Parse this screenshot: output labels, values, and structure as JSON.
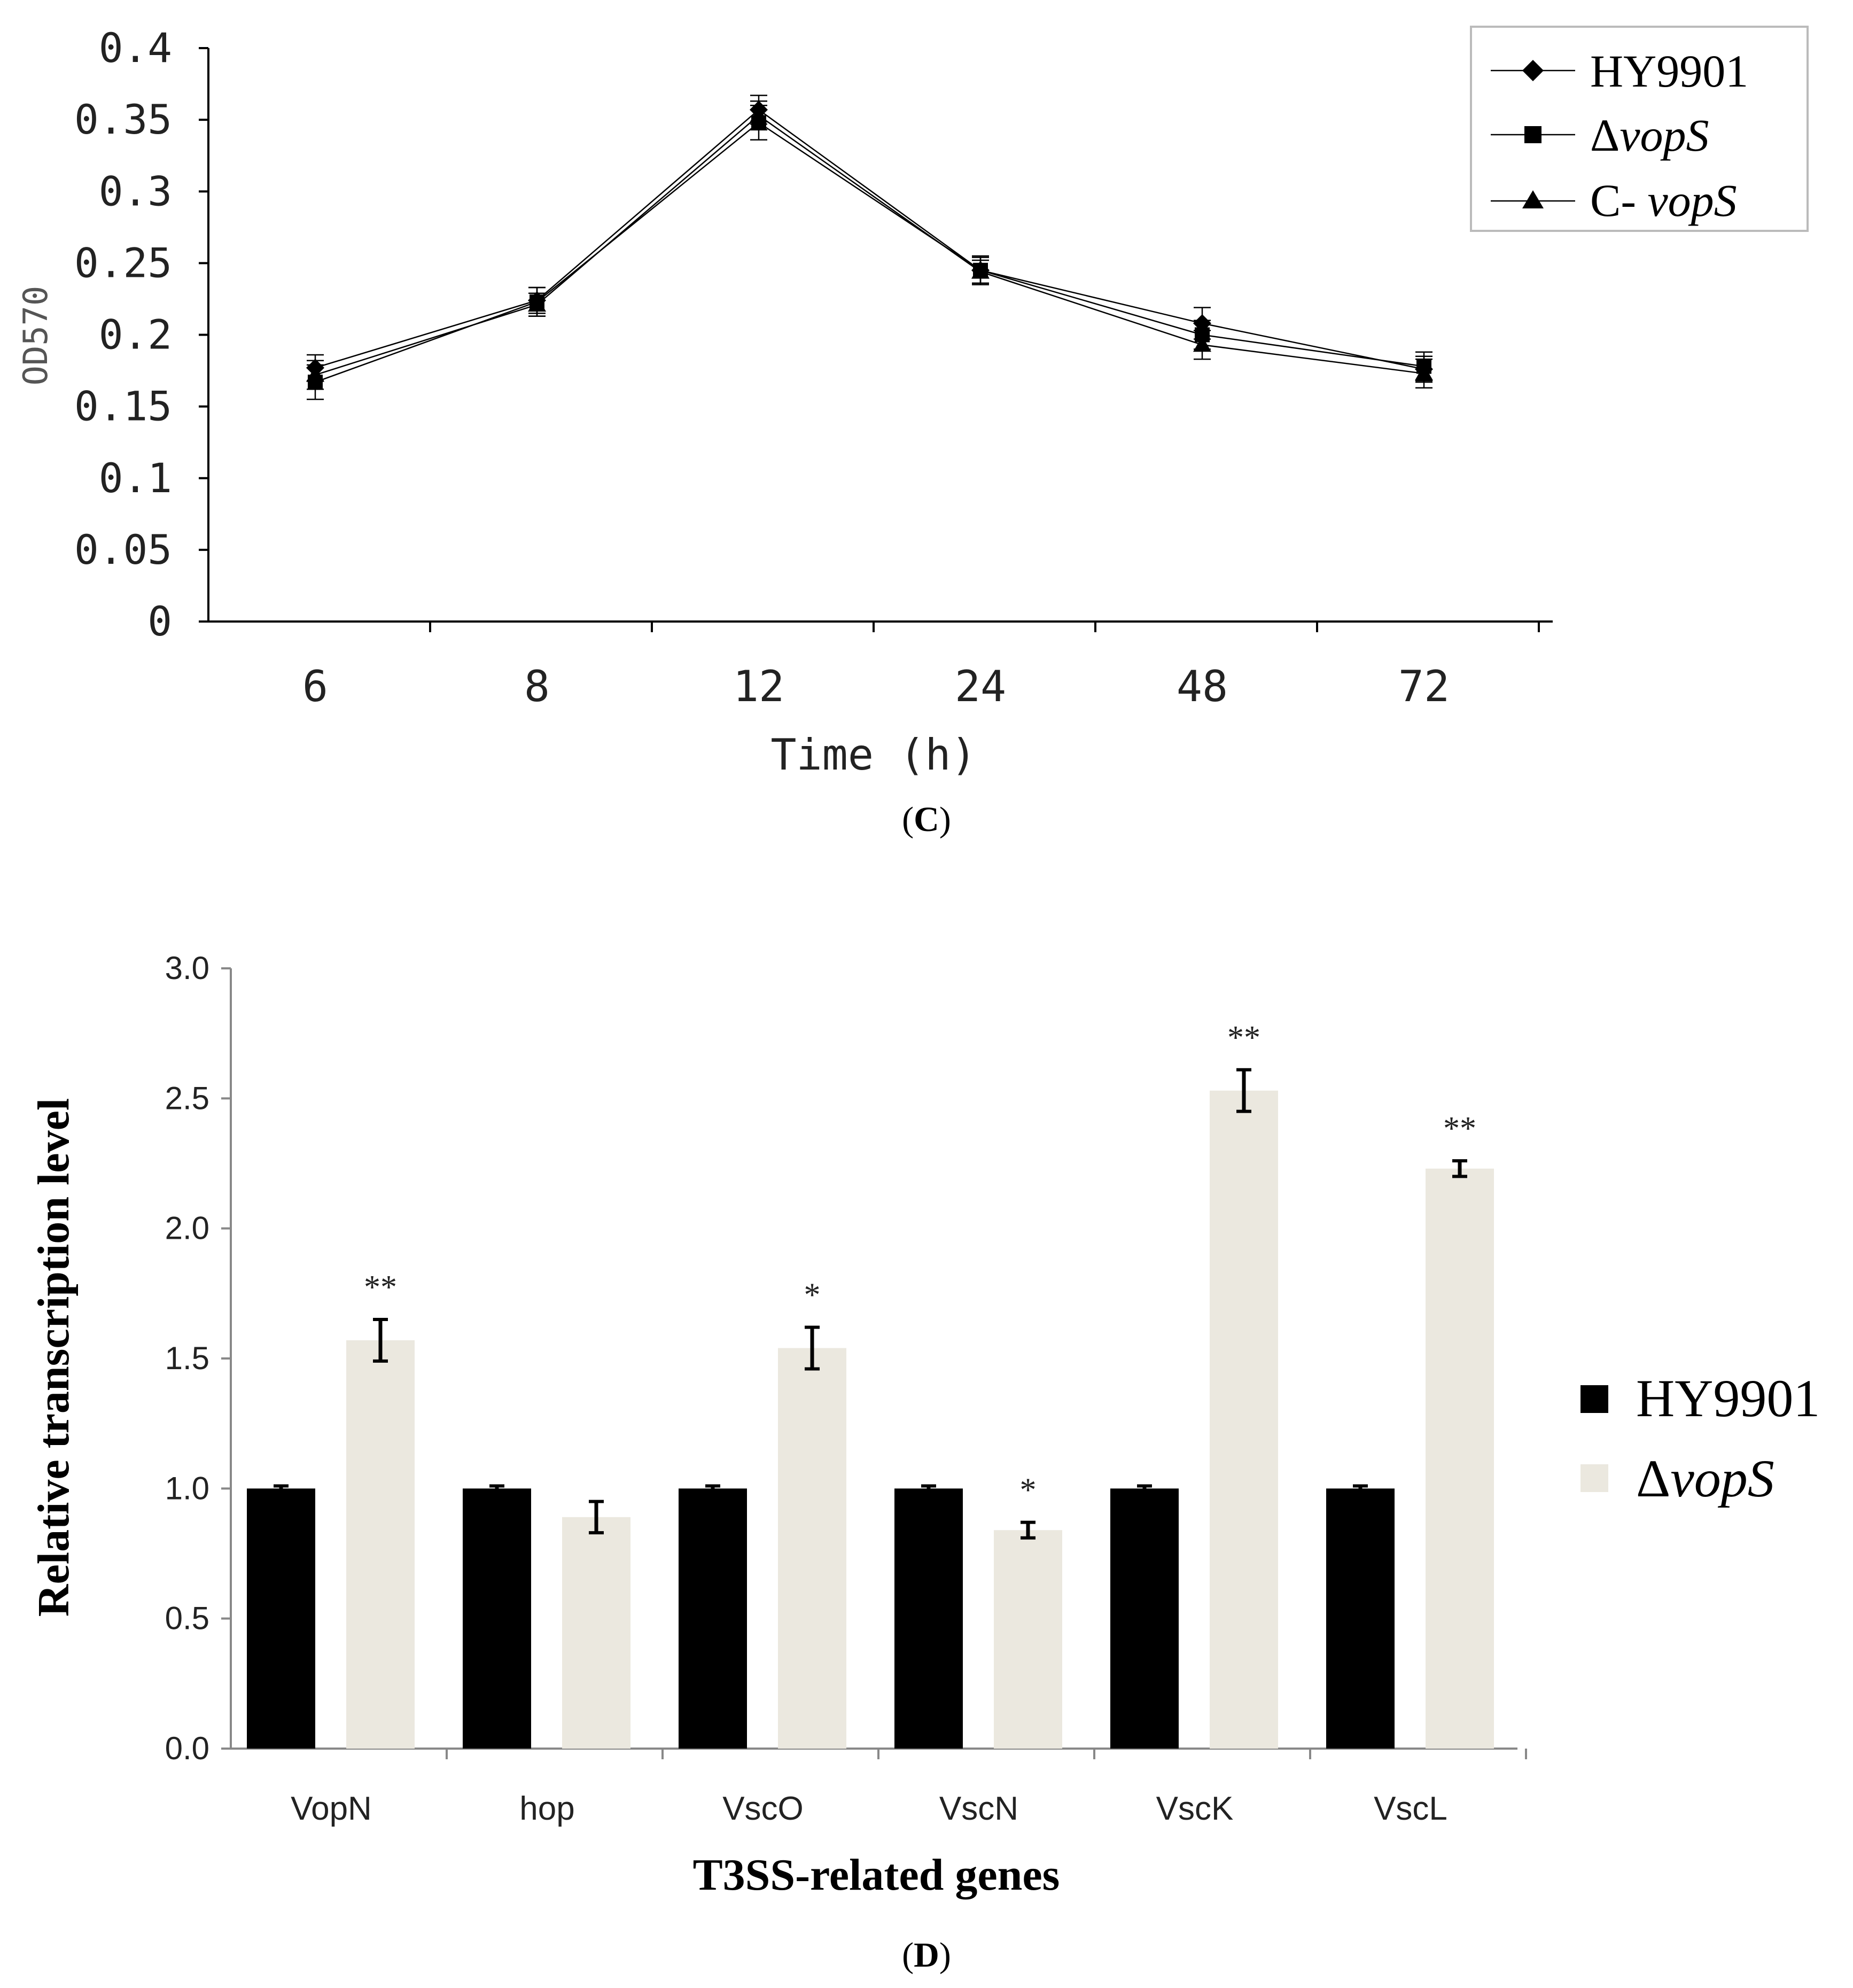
{
  "chart_data": [
    {
      "panel_label_open": "(",
      "panel_label_letter": "C",
      "panel_label_close": ")",
      "type": "line",
      "categories": [
        "6",
        "8",
        "12",
        "24",
        "48",
        "72"
      ],
      "xlabel": "Time (h)",
      "ylabel": "OD570",
      "ylim": [
        0,
        0.4
      ],
      "yticks": [
        "0",
        "0.05",
        "0.1",
        "0.15",
        "0.2",
        "0.25",
        "0.3",
        "0.35",
        "0.4"
      ],
      "yticks_values": [
        0,
        0.05,
        0.1,
        0.15,
        0.2,
        0.25,
        0.3,
        0.35,
        0.4
      ],
      "legend_position": "top-right",
      "series": [
        {
          "name": "HY9901",
          "name_prefix": "",
          "name_italic": "",
          "marker": "diamond",
          "values": [
            0.177,
            0.224,
            0.357,
            0.245,
            0.208,
            0.176
          ],
          "errors": [
            0.009,
            0.009,
            0.01,
            0.009,
            0.011,
            0.009
          ]
        },
        {
          "name": "ΔvopS",
          "name_prefix": "Δ",
          "name_italic": "vopS",
          "marker": "square",
          "values": [
            0.167,
            0.223,
            0.348,
            0.245,
            0.2,
            0.178
          ],
          "errors": [
            0.012,
            0.01,
            0.012,
            0.01,
            0.01,
            0.01
          ]
        },
        {
          "name": "C- vopS",
          "name_prefix": "C- ",
          "name_italic": "vopS",
          "marker": "triangle",
          "values": [
            0.172,
            0.221,
            0.353,
            0.244,
            0.193,
            0.173
          ],
          "errors": [
            0.01,
            0.008,
            0.01,
            0.008,
            0.01,
            0.01
          ]
        }
      ]
    },
    {
      "panel_label_open": "(",
      "panel_label_letter": "D",
      "panel_label_close": ")",
      "type": "bar",
      "categories": [
        "VopN",
        "hop",
        "VscO",
        "VscN",
        "VscK",
        "VscL"
      ],
      "xlabel": "T3SS-related genes",
      "ylabel": "Relative transcription level",
      "ylim": [
        0,
        3.0
      ],
      "yticks": [
        "0.0",
        "0.5",
        "1.0",
        "1.5",
        "2.0",
        "2.5",
        "3.0"
      ],
      "yticks_values": [
        0,
        0.5,
        1.0,
        1.5,
        2.0,
        2.5,
        3.0
      ],
      "legend_position": "right",
      "series": [
        {
          "name": "HY9901",
          "name_prefix": "",
          "name_italic": "",
          "color": "#000000",
          "values": [
            1.0,
            1.0,
            1.0,
            1.0,
            1.0,
            1.0
          ],
          "errors": [
            0.01,
            0.01,
            0.01,
            0.01,
            0.01,
            0.01
          ],
          "significance": [
            "",
            "",
            "",
            "",
            "",
            ""
          ]
        },
        {
          "name": "ΔvopS",
          "name_prefix": "Δ",
          "name_italic": "vopS",
          "color": "#ebe8df",
          "values": [
            1.57,
            0.89,
            1.54,
            0.84,
            2.53,
            2.23
          ],
          "errors": [
            0.08,
            0.06,
            0.08,
            0.03,
            0.08,
            0.03
          ],
          "significance": [
            "**",
            "",
            "*",
            "*",
            "**",
            "**"
          ]
        }
      ]
    }
  ]
}
